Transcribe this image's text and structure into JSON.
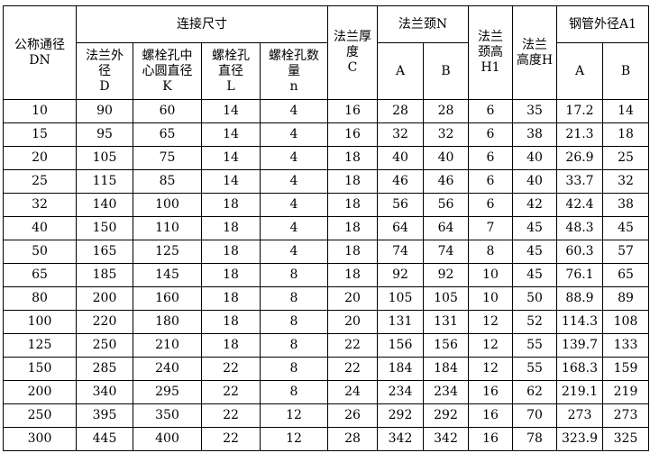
{
  "headers": {
    "dn": [
      "公称通径",
      "DN"
    ],
    "connection": "连接尺寸",
    "D": [
      "法兰外",
      "径",
      "D"
    ],
    "K": [
      "螺栓孔中",
      "心圆直径",
      "K"
    ],
    "L": [
      "螺栓孔",
      "直径",
      "L"
    ],
    "n": [
      "螺栓孔数",
      "量",
      "n"
    ],
    "C": [
      "法兰厚",
      "度",
      "C"
    ],
    "neck": "法兰颈N",
    "neck_A": "A",
    "neck_B": "B",
    "H1": [
      "法兰",
      "颈高",
      "H1"
    ],
    "H": [
      "法兰",
      "高度H"
    ],
    "pipe": "钢管外径A1",
    "pipe_A": "A",
    "pipe_B": "B"
  },
  "rows": [
    [
      "10",
      "90",
      "60",
      "14",
      "4",
      "16",
      "28",
      "28",
      "6",
      "35",
      "17.2",
      "14"
    ],
    [
      "15",
      "95",
      "65",
      "14",
      "4",
      "16",
      "32",
      "32",
      "6",
      "38",
      "21.3",
      "18"
    ],
    [
      "20",
      "105",
      "75",
      "14",
      "4",
      "18",
      "40",
      "40",
      "6",
      "40",
      "26.9",
      "25"
    ],
    [
      "25",
      "115",
      "85",
      "14",
      "4",
      "18",
      "46",
      "46",
      "6",
      "40",
      "33.7",
      "32"
    ],
    [
      "32",
      "140",
      "100",
      "18",
      "4",
      "18",
      "56",
      "56",
      "6",
      "42",
      "42.4",
      "38"
    ],
    [
      "40",
      "150",
      "110",
      "18",
      "4",
      "18",
      "64",
      "64",
      "7",
      "45",
      "48.3",
      "45"
    ],
    [
      "50",
      "165",
      "125",
      "18",
      "4",
      "18",
      "74",
      "74",
      "8",
      "45",
      "60.3",
      "57"
    ],
    [
      "65",
      "185",
      "145",
      "18",
      "8",
      "18",
      "92",
      "92",
      "10",
      "45",
      "76.1",
      "65"
    ],
    [
      "80",
      "200",
      "160",
      "18",
      "8",
      "20",
      "105",
      "105",
      "10",
      "50",
      "88.9",
      "89"
    ],
    [
      "100",
      "220",
      "180",
      "18",
      "8",
      "20",
      "131",
      "131",
      "12",
      "52",
      "114.3",
      "108"
    ],
    [
      "125",
      "250",
      "210",
      "18",
      "8",
      "22",
      "156",
      "156",
      "12",
      "55",
      "139.7",
      "133"
    ],
    [
      "150",
      "285",
      "240",
      "22",
      "8",
      "22",
      "184",
      "184",
      "12",
      "55",
      "168.3",
      "159"
    ],
    [
      "200",
      "340",
      "295",
      "22",
      "8",
      "24",
      "234",
      "234",
      "16",
      "62",
      "219.1",
      "219"
    ],
    [
      "250",
      "395",
      "350",
      "22",
      "12",
      "26",
      "292",
      "292",
      "16",
      "70",
      "273",
      "273"
    ],
    [
      "300",
      "445",
      "400",
      "22",
      "12",
      "28",
      "342",
      "342",
      "16",
      "78",
      "323.9",
      "325"
    ]
  ]
}
